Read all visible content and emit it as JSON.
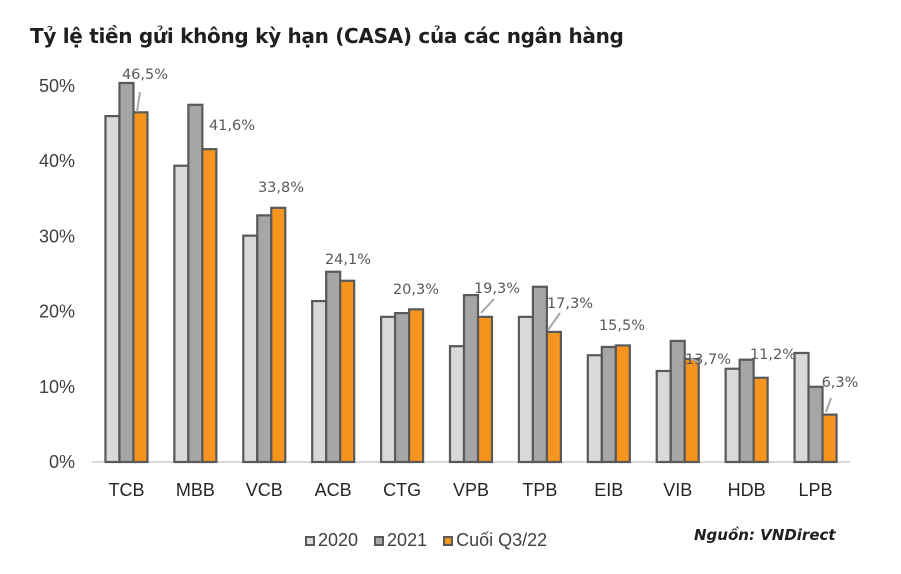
{
  "title": "Tỷ lệ tiền gửi không kỳ hạn (CASA) của các ngân hàng",
  "source": "Nguồn: VNDirect",
  "colors": {
    "s2020": "#d9d9d9",
    "s2021": "#a6a6a6",
    "sQ3": "#f7941d",
    "border": "#595959",
    "axis": "#d9d9d9"
  },
  "legend": [
    {
      "label": "2020",
      "color": "#d9d9d9"
    },
    {
      "label": "2021",
      "color": "#a6a6a6"
    },
    {
      "label": "Cuối Q3/22",
      "color": "#f7941d"
    }
  ],
  "chart_data": {
    "type": "bar",
    "title": "Tỷ lệ tiền gửi không kỳ hạn (CASA) của các ngân hàng",
    "xlabel": "",
    "ylabel": "",
    "ylim": [
      0,
      50
    ],
    "yticks": [
      "0%",
      "10%",
      "20%",
      "30%",
      "40%",
      "50%"
    ],
    "grid": false,
    "legend_position": "bottom",
    "categories": [
      "TCB",
      "MBB",
      "VCB",
      "ACB",
      "CTG",
      "VPB",
      "TPB",
      "EIB",
      "VIB",
      "HDB",
      "LPB"
    ],
    "series": [
      {
        "name": "2020",
        "values": [
          46.0,
          39.4,
          30.1,
          21.4,
          19.3,
          15.4,
          19.3,
          14.2,
          12.1,
          12.4,
          14.5
        ]
      },
      {
        "name": "2021",
        "values": [
          50.4,
          47.5,
          32.8,
          25.3,
          19.8,
          22.2,
          23.3,
          15.3,
          16.1,
          13.6,
          10.0
        ]
      },
      {
        "name": "Cuối Q3/22",
        "values": [
          46.5,
          41.6,
          33.8,
          24.1,
          20.3,
          19.3,
          17.3,
          15.5,
          13.7,
          11.2,
          6.3
        ]
      }
    ],
    "data_labels": [
      "46,5%",
      "41,6%",
      "33,8%",
      "24,1%",
      "20,3%",
      "19,3%",
      "17,3%",
      "15,5%",
      "13,7%",
      "11,2%",
      "6,3%"
    ],
    "annotations": "Data labels shown for Cuối Q3/22 series only; source: VNDirect"
  }
}
